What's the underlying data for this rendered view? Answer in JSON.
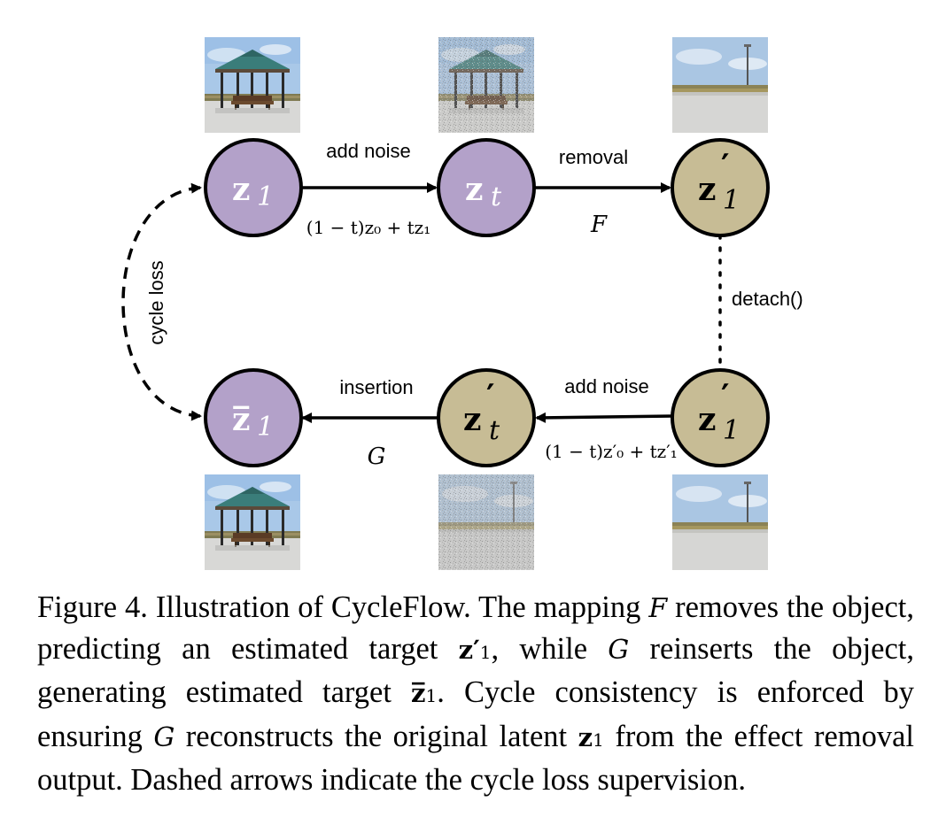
{
  "nodes": {
    "z1_top": {
      "base": "z",
      "sub": "1",
      "color": "#b3a1c9"
    },
    "zt_top": {
      "base": "z",
      "sub": "t",
      "color": "#b3a1c9"
    },
    "z1p_top": {
      "base": "z",
      "prime": "′",
      "sub": "1",
      "color": "#c7bc95"
    },
    "zbar1": {
      "base": "z̅",
      "sub": "1",
      "color": "#b3a1c9"
    },
    "ztp_bottom": {
      "base": "z",
      "prime": "′",
      "sub": "t",
      "color": "#c7bc95"
    },
    "z1p_bottom": {
      "base": "z",
      "prime": "′",
      "sub": "1",
      "color": "#c7bc95"
    }
  },
  "edges": {
    "top_add_noise": "add noise",
    "top_formula": "(1 − t)z₀ + tz₁",
    "removal": "removal",
    "F": "F",
    "detach": "detach()",
    "bottom_add_noise": "add noise",
    "bottom_formula": "(1 − t)z′₀ + tz′₁",
    "insertion": "insertion",
    "G": "G",
    "cycle_loss": "cycle loss"
  },
  "caption": {
    "t1": "Figure 4. Illustration of CycleFlow. The mapping ",
    "F": "F",
    "t2": " removes the object, predicting an estimated target ",
    "z1p": "z′",
    "z1p_sub": "1",
    "t3": ", while ",
    "G1": "G",
    "t4": " reinserts the object, generating estimated target ",
    "zbar": "z̅",
    "zbar_sub": "1",
    "t5": ". Cycle consistency is enforced by ensuring ",
    "G2": "G",
    "t6": " reconstructs the original latent ",
    "z1": "z",
    "z1_sub": "1",
    "t7": " from the effect removal output. Dashed arrows indicate the cycle loss supervision."
  },
  "colors": {
    "purple_node": "#b3a1c9",
    "tan_node": "#c7bc95"
  }
}
